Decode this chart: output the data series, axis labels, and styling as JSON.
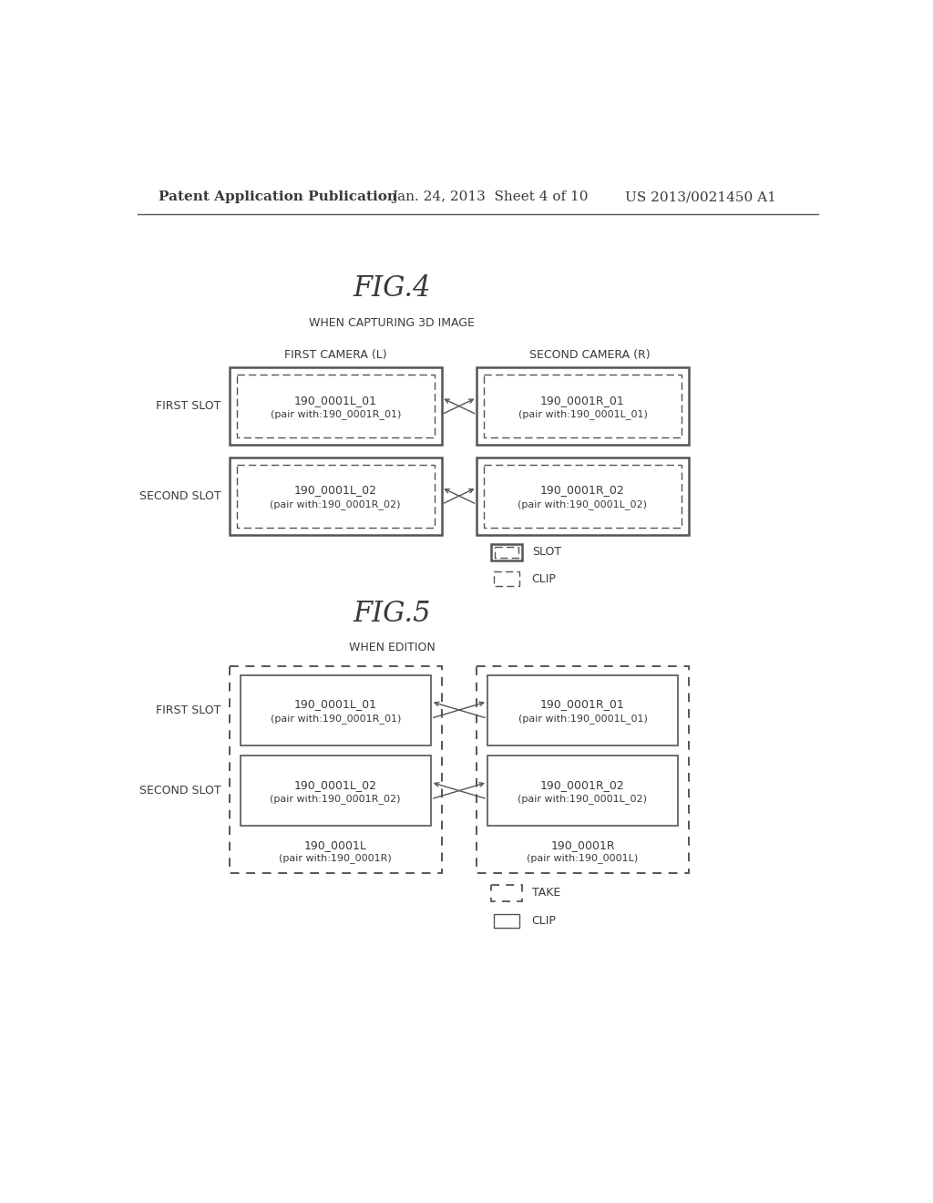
{
  "bg_color": "#ffffff",
  "header_text": "Patent Application Publication",
  "header_date": "Jan. 24, 2013  Sheet 4 of 10",
  "header_patent": "US 2013/0021450 A1",
  "fig4_title": "FIG.4",
  "fig4_subtitle": "WHEN CAPTURING 3D IMAGE",
  "fig4_cam_left": "FIRST CAMERA (L)",
  "fig4_cam_right": "SECOND CAMERA (R)",
  "fig4_slot1_label": "FIRST SLOT",
  "fig4_slot2_label": "SECOND SLOT",
  "fig4_clip_L1_line1": "190_0001L_01",
  "fig4_clip_L1_line2": "(pair with:190_0001R_01)",
  "fig4_clip_R1_line1": "190_0001R_01",
  "fig4_clip_R1_line2": "(pair with:190_0001L_01)",
  "fig4_clip_L2_line1": "190_0001L_02",
  "fig4_clip_L2_line2": "(pair with:190_0001R_02)",
  "fig4_clip_R2_line1": "190_0001R_02",
  "fig4_clip_R2_line2": "(pair with:190_0001L_02)",
  "fig4_legend_slot": "SLOT",
  "fig4_legend_clip": "CLIP",
  "fig5_title": "FIG.5",
  "fig5_subtitle": "WHEN EDITION",
  "fig5_slot1_label": "FIRST SLOT",
  "fig5_slot2_label": "SECOND SLOT",
  "fig5_clip_L1_line1": "190_0001L_01",
  "fig5_clip_L1_line2": "(pair with:190_0001R_01)",
  "fig5_clip_R1_line1": "190_0001R_01",
  "fig5_clip_R1_line2": "(pair with:190_0001L_01)",
  "fig5_clip_L2_line1": "190_0001L_02",
  "fig5_clip_L2_line2": "(pair with:190_0001R_02)",
  "fig5_clip_R2_line1": "190_0001R_02",
  "fig5_clip_R2_line2": "(pair with:190_0001L_02)",
  "fig5_take_L_line1": "190_0001L",
  "fig5_take_L_line2": "(pair with:190_0001R)",
  "fig5_take_R_line1": "190_0001R",
  "fig5_take_R_line2": "(pair with:190_0001L)",
  "fig5_legend_take": "TAKE",
  "fig5_legend_clip": "CLIP",
  "text_color": "#3a3a3a",
  "box_color": "#555555"
}
